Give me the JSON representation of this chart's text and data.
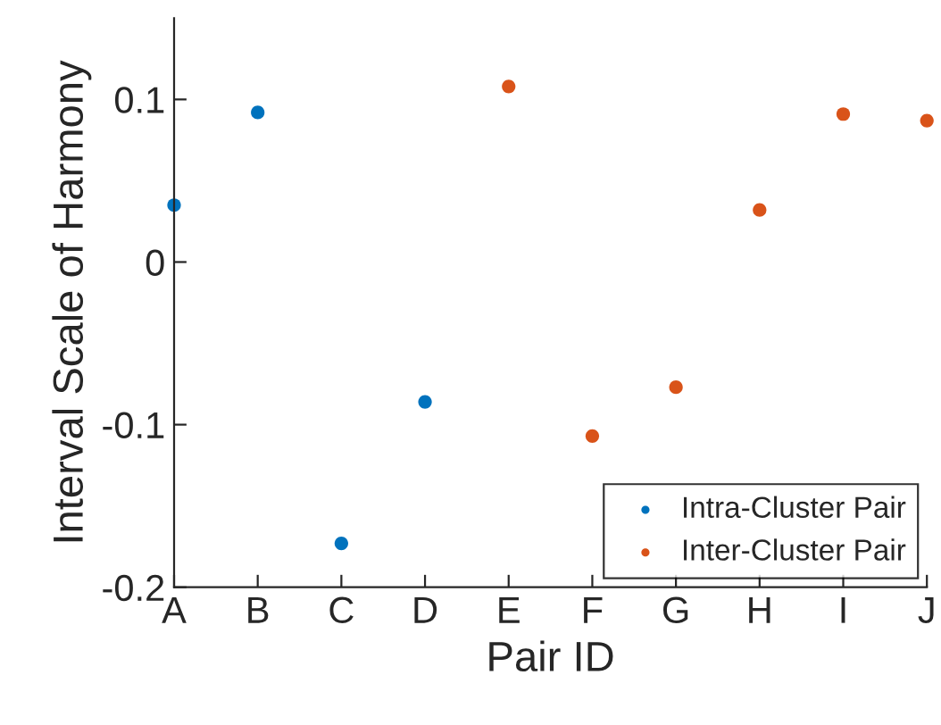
{
  "chart_data": {
    "type": "scatter",
    "xlabel": "Pair ID",
    "ylabel": "Interval Scale of Harmony",
    "categories": [
      "A",
      "B",
      "C",
      "D",
      "E",
      "F",
      "G",
      "H",
      "I",
      "J"
    ],
    "series": [
      {
        "name": "Intra-Cluster Pair",
        "color": "#0072bd",
        "values": [
          0.035,
          0.092,
          -0.173,
          -0.086,
          null,
          null,
          null,
          null,
          null,
          null
        ]
      },
      {
        "name": "Inter-Cluster Pair",
        "color": "#d95319",
        "values": [
          null,
          null,
          null,
          null,
          0.108,
          -0.107,
          -0.077,
          0.032,
          0.091,
          0.087
        ]
      }
    ],
    "ylim": [
      -0.2,
      0.15
    ],
    "yticks": [
      {
        "value": -0.2,
        "label": "-0.2"
      },
      {
        "value": -0.1,
        "label": "-0.1"
      },
      0,
      0.1
    ],
    "legend": "bottom right",
    "marker": "circle",
    "grid": false
  }
}
